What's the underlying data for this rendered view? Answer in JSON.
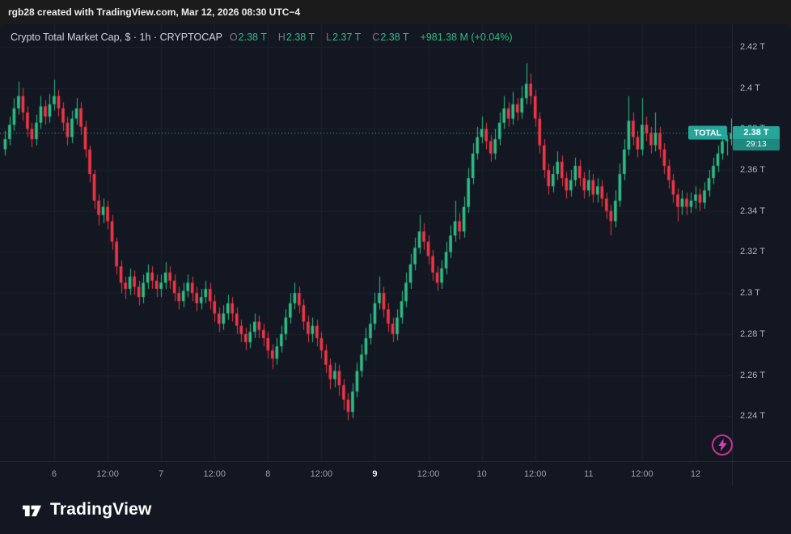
{
  "topbar": {
    "text": "rgb28 created with TradingView.com, Mar 12, 2026 08:30 UTC−4"
  },
  "legend": {
    "title": "Crypto Total Market Cap, $ · 1h · CRYPTOCAP",
    "ohlc": [
      {
        "label": "O",
        "value": "2.38 T"
      },
      {
        "label": "H",
        "value": "2.38 T"
      },
      {
        "label": "L",
        "value": "2.37 T"
      },
      {
        "label": "C",
        "value": "2.38 T"
      }
    ],
    "change": "+981.38 M (+0.04%)"
  },
  "price_label": {
    "symbol_tag": "TOTAL",
    "price": "2.38 T",
    "countdown": "29:13"
  },
  "footer": {
    "brand": "TradingView"
  },
  "colors": {
    "up": "#2ebd85",
    "down": "#f23645",
    "bg": "#131722",
    "grid": "#1e222d",
    "axis_text": "#b2b5be",
    "accent_badge": "#26a69a",
    "bolt": "#e0319c"
  },
  "chart_data": {
    "type": "candlestick",
    "title": "Crypto Total Market Cap, $",
    "interval": "1h",
    "symbol": "CRYPTOCAP",
    "ylim": [
      2.218,
      2.431
    ],
    "last_close": 2.378,
    "price_axis_ticks": [
      {
        "label": "2.42 T",
        "value": 2.42
      },
      {
        "label": "2.4 T",
        "value": 2.4
      },
      {
        "label": "2.38 T",
        "value": 2.38
      },
      {
        "label": "2.36 T",
        "value": 2.36
      },
      {
        "label": "2.34 T",
        "value": 2.34
      },
      {
        "label": "2.32 T",
        "value": 2.32
      },
      {
        "label": "2.3 T",
        "value": 2.3
      },
      {
        "label": "2.28 T",
        "value": 2.28
      },
      {
        "label": "2.26 T",
        "value": 2.26
      },
      {
        "label": "2.24 T",
        "value": 2.24
      }
    ],
    "time_axis_ticks": [
      {
        "label": "6",
        "index": 11,
        "emphasis": false
      },
      {
        "label": "12:00",
        "index": 23,
        "emphasis": false
      },
      {
        "label": "7",
        "index": 35,
        "emphasis": false
      },
      {
        "label": "12:00",
        "index": 47,
        "emphasis": false
      },
      {
        "label": "8",
        "index": 59,
        "emphasis": false
      },
      {
        "label": "12:00",
        "index": 71,
        "emphasis": false
      },
      {
        "label": "9",
        "index": 83,
        "emphasis": true
      },
      {
        "label": "12:00",
        "index": 95,
        "emphasis": false
      },
      {
        "label": "10",
        "index": 107,
        "emphasis": false
      },
      {
        "label": "12:00",
        "index": 119,
        "emphasis": false
      },
      {
        "label": "11",
        "index": 131,
        "emphasis": false
      },
      {
        "label": "12:00",
        "index": 143,
        "emphasis": false
      },
      {
        "label": "12",
        "index": 155,
        "emphasis": false
      }
    ],
    "candles": [
      [
        2.37,
        2.379,
        2.367,
        2.375
      ],
      [
        2.375,
        2.386,
        2.372,
        2.382
      ],
      [
        2.382,
        2.395,
        2.379,
        2.39
      ],
      [
        2.39,
        2.403,
        2.387,
        2.396
      ],
      [
        2.396,
        2.4,
        2.384,
        2.388
      ],
      [
        2.388,
        2.391,
        2.376,
        2.38
      ],
      [
        2.38,
        2.383,
        2.371,
        2.375
      ],
      [
        2.375,
        2.387,
        2.372,
        2.383
      ],
      [
        2.383,
        2.396,
        2.38,
        2.391
      ],
      [
        2.391,
        2.394,
        2.382,
        2.386
      ],
      [
        2.386,
        2.397,
        2.383,
        2.392
      ],
      [
        2.392,
        2.404,
        2.389,
        2.396
      ],
      [
        2.396,
        2.399,
        2.386,
        2.39
      ],
      [
        2.39,
        2.393,
        2.379,
        2.383
      ],
      [
        2.383,
        2.386,
        2.372,
        2.376
      ],
      [
        2.376,
        2.389,
        2.373,
        2.385
      ],
      [
        2.385,
        2.395,
        2.382,
        2.39
      ],
      [
        2.39,
        2.393,
        2.377,
        2.381
      ],
      [
        2.381,
        2.384,
        2.366,
        2.37
      ],
      [
        2.37,
        2.372,
        2.354,
        2.358
      ],
      [
        2.358,
        2.36,
        2.341,
        2.345
      ],
      [
        2.345,
        2.348,
        2.333,
        2.338
      ],
      [
        2.338,
        2.346,
        2.334,
        2.342
      ],
      [
        2.342,
        2.345,
        2.331,
        2.335
      ],
      [
        2.335,
        2.338,
        2.321,
        2.325
      ],
      [
        2.325,
        2.327,
        2.309,
        2.313
      ],
      [
        2.313,
        2.316,
        2.3,
        2.305
      ],
      [
        2.305,
        2.308,
        2.297,
        2.302
      ],
      [
        2.302,
        2.312,
        2.299,
        2.308
      ],
      [
        2.308,
        2.311,
        2.299,
        2.303
      ],
      [
        2.303,
        2.306,
        2.294,
        2.298
      ],
      [
        2.298,
        2.309,
        2.295,
        2.305
      ],
      [
        2.305,
        2.314,
        2.302,
        2.31
      ],
      [
        2.31,
        2.313,
        2.302,
        2.306
      ],
      [
        2.306,
        2.309,
        2.298,
        2.302
      ],
      [
        2.302,
        2.309,
        2.298,
        2.305
      ],
      [
        2.305,
        2.315,
        2.302,
        2.31
      ],
      [
        2.31,
        2.313,
        2.302,
        2.306
      ],
      [
        2.306,
        2.309,
        2.296,
        2.3
      ],
      [
        2.3,
        2.303,
        2.292,
        2.296
      ],
      [
        2.296,
        2.305,
        2.293,
        2.301
      ],
      [
        2.301,
        2.309,
        2.298,
        2.305
      ],
      [
        2.305,
        2.308,
        2.296,
        2.3
      ],
      [
        2.3,
        2.303,
        2.291,
        2.295
      ],
      [
        2.295,
        2.302,
        2.292,
        2.298
      ],
      [
        2.298,
        2.306,
        2.295,
        2.302
      ],
      [
        2.302,
        2.305,
        2.292,
        2.296
      ],
      [
        2.296,
        2.299,
        2.286,
        2.29
      ],
      [
        2.29,
        2.293,
        2.281,
        2.285
      ],
      [
        2.285,
        2.294,
        2.282,
        2.29
      ],
      [
        2.29,
        2.299,
        2.287,
        2.295
      ],
      [
        2.295,
        2.298,
        2.286,
        2.29
      ],
      [
        2.29,
        2.293,
        2.28,
        2.284
      ],
      [
        2.284,
        2.287,
        2.276,
        2.28
      ],
      [
        2.28,
        2.283,
        2.272,
        2.276
      ],
      [
        2.276,
        2.285,
        2.273,
        2.281
      ],
      [
        2.281,
        2.29,
        2.278,
        2.286
      ],
      [
        2.286,
        2.289,
        2.278,
        2.282
      ],
      [
        2.282,
        2.285,
        2.274,
        2.278
      ],
      [
        2.278,
        2.281,
        2.268,
        2.272
      ],
      [
        2.272,
        2.275,
        2.263,
        2.268
      ],
      [
        2.268,
        2.278,
        2.265,
        2.274
      ],
      [
        2.274,
        2.284,
        2.271,
        2.28
      ],
      [
        2.28,
        2.292,
        2.277,
        2.288
      ],
      [
        2.288,
        2.3,
        2.285,
        2.295
      ],
      [
        2.295,
        2.305,
        2.292,
        2.3
      ],
      [
        2.3,
        2.303,
        2.29,
        2.294
      ],
      [
        2.294,
        2.297,
        2.282,
        2.286
      ],
      [
        2.286,
        2.289,
        2.276,
        2.28
      ],
      [
        2.28,
        2.288,
        2.276,
        2.284
      ],
      [
        2.284,
        2.287,
        2.274,
        2.278
      ],
      [
        2.278,
        2.281,
        2.268,
        2.272
      ],
      [
        2.272,
        2.275,
        2.261,
        2.265
      ],
      [
        2.265,
        2.268,
        2.253,
        2.258
      ],
      [
        2.258,
        2.266,
        2.254,
        2.262
      ],
      [
        2.262,
        2.265,
        2.25,
        2.255
      ],
      [
        2.255,
        2.258,
        2.243,
        2.248
      ],
      [
        2.248,
        2.251,
        2.238,
        2.242
      ],
      [
        2.242,
        2.256,
        2.239,
        2.252
      ],
      [
        2.252,
        2.266,
        2.249,
        2.262
      ],
      [
        2.262,
        2.275,
        2.259,
        2.27
      ],
      [
        2.27,
        2.283,
        2.267,
        2.278
      ],
      [
        2.278,
        2.29,
        2.275,
        2.285
      ],
      [
        2.285,
        2.3,
        2.282,
        2.295
      ],
      [
        2.295,
        2.308,
        2.292,
        2.3
      ],
      [
        2.3,
        2.303,
        2.288,
        2.292
      ],
      [
        2.292,
        2.295,
        2.281,
        2.285
      ],
      [
        2.285,
        2.288,
        2.276,
        2.28
      ],
      [
        2.28,
        2.292,
        2.277,
        2.288
      ],
      [
        2.288,
        2.301,
        2.285,
        2.296
      ],
      [
        2.296,
        2.31,
        2.293,
        2.305
      ],
      [
        2.305,
        2.319,
        2.302,
        2.314
      ],
      [
        2.314,
        2.327,
        2.311,
        2.322
      ],
      [
        2.322,
        2.338,
        2.319,
        2.33
      ],
      [
        2.33,
        2.334,
        2.321,
        2.325
      ],
      [
        2.325,
        2.328,
        2.314,
        2.318
      ],
      [
        2.318,
        2.321,
        2.306,
        2.31
      ],
      [
        2.31,
        2.313,
        2.301,
        2.305
      ],
      [
        2.305,
        2.316,
        2.302,
        2.312
      ],
      [
        2.312,
        2.325,
        2.309,
        2.32
      ],
      [
        2.32,
        2.333,
        2.317,
        2.328
      ],
      [
        2.328,
        2.345,
        2.325,
        2.335
      ],
      [
        2.335,
        2.339,
        2.326,
        2.33
      ],
      [
        2.33,
        2.347,
        2.327,
        2.342
      ],
      [
        2.342,
        2.361,
        2.339,
        2.356
      ],
      [
        2.356,
        2.373,
        2.353,
        2.368
      ],
      [
        2.368,
        2.381,
        2.365,
        2.376
      ],
      [
        2.376,
        2.386,
        2.373,
        2.38
      ],
      [
        2.38,
        2.383,
        2.37,
        2.374
      ],
      [
        2.374,
        2.377,
        2.364,
        2.368
      ],
      [
        2.368,
        2.38,
        2.365,
        2.375
      ],
      [
        2.375,
        2.388,
        2.372,
        2.383
      ],
      [
        2.383,
        2.396,
        2.38,
        2.39
      ],
      [
        2.39,
        2.393,
        2.381,
        2.385
      ],
      [
        2.385,
        2.398,
        2.382,
        2.392
      ],
      [
        2.392,
        2.395,
        2.384,
        2.388
      ],
      [
        2.388,
        2.401,
        2.385,
        2.395
      ],
      [
        2.395,
        2.412,
        2.392,
        2.402
      ],
      [
        2.402,
        2.407,
        2.392,
        2.396
      ],
      [
        2.396,
        2.399,
        2.381,
        2.385
      ],
      [
        2.385,
        2.388,
        2.368,
        2.372
      ],
      [
        2.372,
        2.375,
        2.356,
        2.36
      ],
      [
        2.36,
        2.363,
        2.348,
        2.352
      ],
      [
        2.352,
        2.362,
        2.349,
        2.358
      ],
      [
        2.358,
        2.369,
        2.355,
        2.364
      ],
      [
        2.364,
        2.367,
        2.352,
        2.356
      ],
      [
        2.356,
        2.359,
        2.346,
        2.35
      ],
      [
        2.35,
        2.36,
        2.347,
        2.355
      ],
      [
        2.355,
        2.366,
        2.352,
        2.362
      ],
      [
        2.362,
        2.365,
        2.352,
        2.356
      ],
      [
        2.356,
        2.359,
        2.346,
        2.35
      ],
      [
        2.35,
        2.36,
        2.347,
        2.355
      ],
      [
        2.355,
        2.358,
        2.344,
        2.348
      ],
      [
        2.348,
        2.356,
        2.344,
        2.352
      ],
      [
        2.352,
        2.355,
        2.342,
        2.346
      ],
      [
        2.346,
        2.349,
        2.336,
        2.34
      ],
      [
        2.34,
        2.343,
        2.328,
        2.335
      ],
      [
        2.335,
        2.35,
        2.332,
        2.345
      ],
      [
        2.345,
        2.363,
        2.342,
        2.358
      ],
      [
        2.358,
        2.375,
        2.355,
        2.37
      ],
      [
        2.37,
        2.396,
        2.367,
        2.384
      ],
      [
        2.384,
        2.388,
        2.372,
        2.376
      ],
      [
        2.376,
        2.379,
        2.366,
        2.37
      ],
      [
        2.37,
        2.395,
        2.367,
        2.382
      ],
      [
        2.382,
        2.386,
        2.374,
        2.378
      ],
      [
        2.378,
        2.381,
        2.368,
        2.372
      ],
      [
        2.372,
        2.388,
        2.369,
        2.378
      ],
      [
        2.378,
        2.381,
        2.366,
        2.37
      ],
      [
        2.37,
        2.373,
        2.358,
        2.362
      ],
      [
        2.362,
        2.365,
        2.351,
        2.355
      ],
      [
        2.355,
        2.358,
        2.344,
        2.348
      ],
      [
        2.348,
        2.351,
        2.335,
        2.342
      ],
      [
        2.342,
        2.35,
        2.338,
        2.346
      ],
      [
        2.346,
        2.349,
        2.338,
        2.342
      ],
      [
        2.342,
        2.349,
        2.339,
        2.345
      ],
      [
        2.345,
        2.352,
        2.341,
        2.348
      ],
      [
        2.348,
        2.351,
        2.34,
        2.344
      ],
      [
        2.344,
        2.354,
        2.341,
        2.35
      ],
      [
        2.35,
        2.36,
        2.347,
        2.356
      ],
      [
        2.356,
        2.366,
        2.353,
        2.362
      ],
      [
        2.362,
        2.372,
        2.359,
        2.368
      ],
      [
        2.368,
        2.378,
        2.365,
        2.374
      ],
      [
        2.374,
        2.377,
        2.367,
        2.375
      ],
      [
        2.375,
        2.385,
        2.372,
        2.378
      ]
    ]
  }
}
